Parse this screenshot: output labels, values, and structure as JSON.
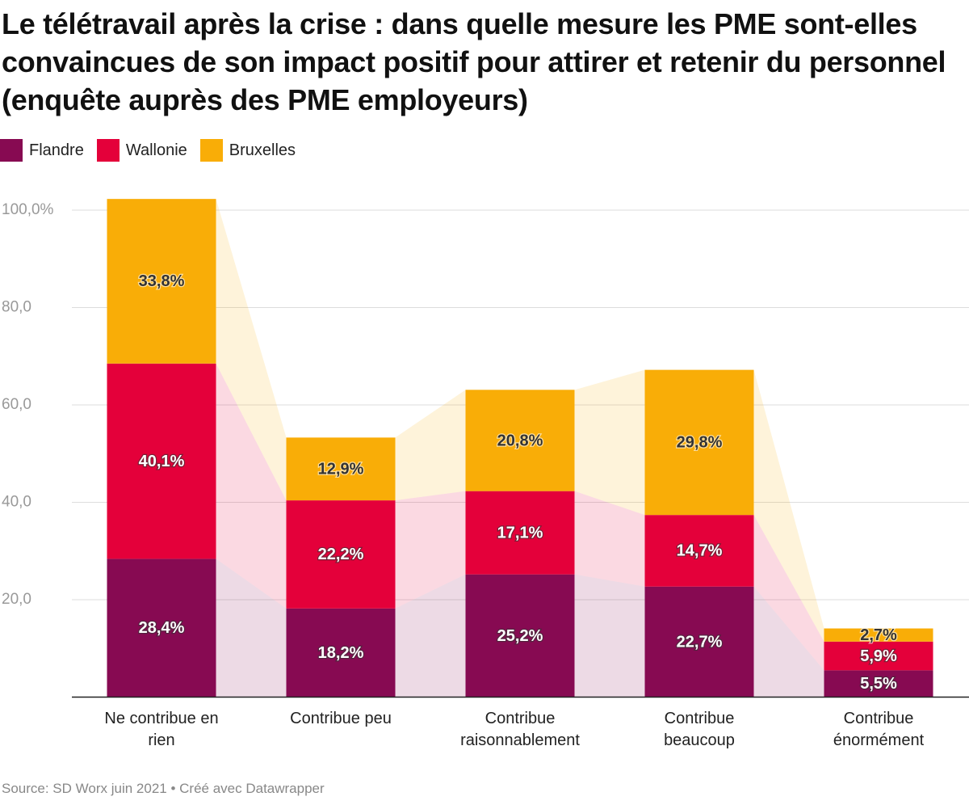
{
  "chart_data": {
    "type": "stacked-bar",
    "title": "Le télétravail après la crise : dans quelle mesure les PME sont-elles convaincues de son impact positif pour attirer et retenir du personnel (enquête auprès des PME employeurs)",
    "source": "Source: SD Worx juin 2021 • Créé avec Datawrapper",
    "categories": [
      "Ne contribue en rien",
      "Contribue peu",
      "Contribue raisonnablement",
      "Contribue beaucoup",
      "Contribue énormément"
    ],
    "series": [
      {
        "name": "Flandre",
        "color": "#870a52",
        "values": [
          28.4,
          18.2,
          25.2,
          22.7,
          5.5
        ],
        "value_labels": [
          "28,4%",
          "18,2%",
          "25,2%",
          "22,7%",
          "5,5%"
        ]
      },
      {
        "name": "Wallonie",
        "color": "#e4003a",
        "values": [
          40.1,
          22.2,
          17.1,
          14.7,
          5.9
        ],
        "value_labels": [
          "40,1%",
          "22,2%",
          "17,1%",
          "14,7%",
          "5,9%"
        ]
      },
      {
        "name": "Bruxelles",
        "color": "#f9ad07",
        "values": [
          33.8,
          12.9,
          20.8,
          29.8,
          2.7
        ],
        "value_labels": [
          "33,8%",
          "12,9%",
          "20,8%",
          "29,8%",
          "2,7%"
        ]
      }
    ],
    "ylim": [
      0,
      100
    ],
    "yticks": [
      {
        "value": 20,
        "label": "20,0"
      },
      {
        "value": 40,
        "label": "40,0"
      },
      {
        "value": 60,
        "label": "60,0"
      },
      {
        "value": 80,
        "label": "80,0"
      },
      {
        "value": 100,
        "label": "100,0%"
      }
    ],
    "grid": true
  }
}
